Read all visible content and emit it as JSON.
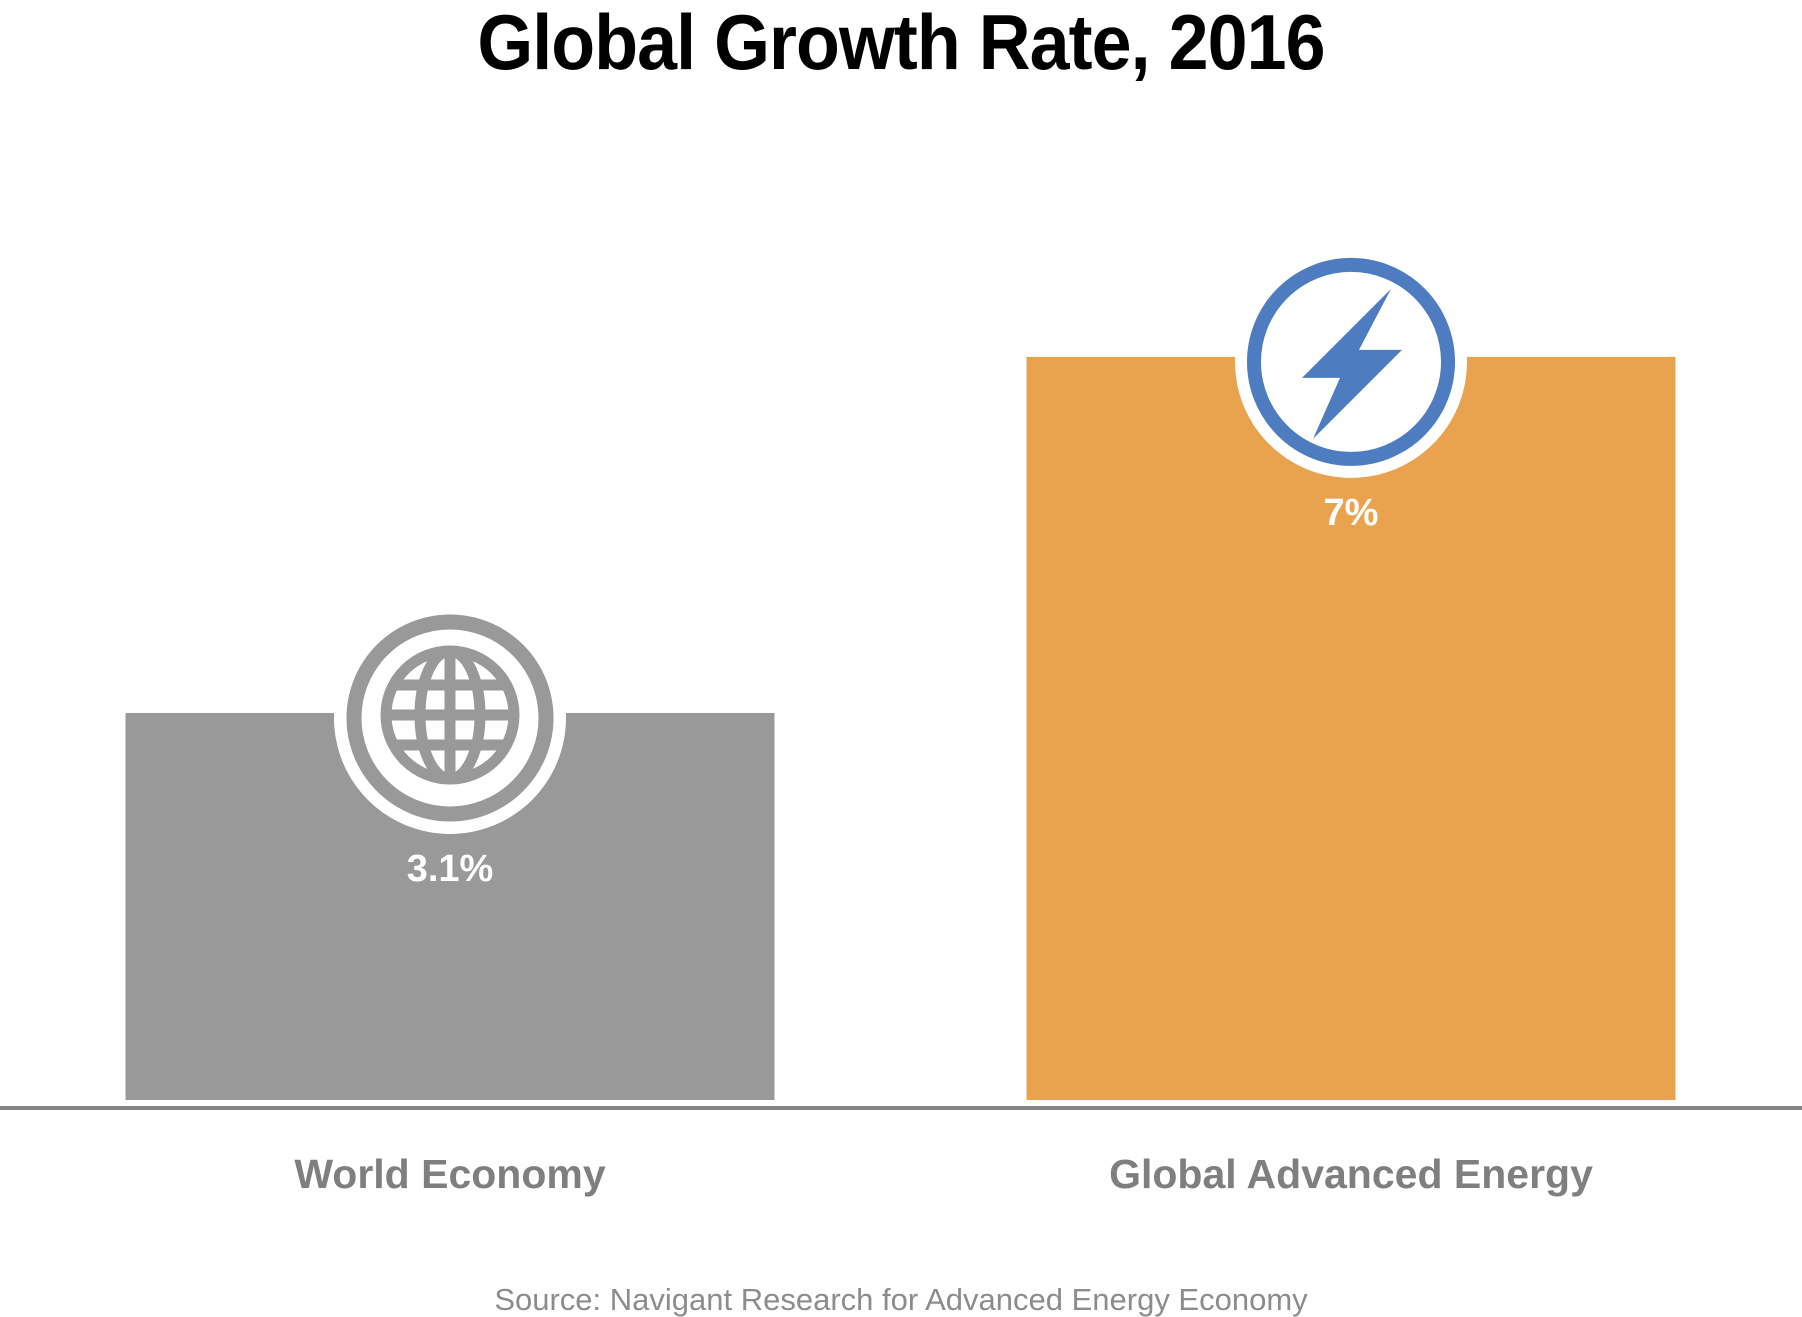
{
  "chart_data": {
    "type": "bar",
    "title": "Global Growth Rate, 2016",
    "xlabel": "",
    "ylabel": "",
    "categories": [
      "World Economy",
      "Global Advanced Energy"
    ],
    "values": [
      3.1,
      7
    ],
    "data_labels": [
      "3.1%",
      "7%"
    ],
    "unit": "%",
    "bar_colors": [
      "#999999",
      "#e9a24e"
    ],
    "bar_icons": [
      "globe-icon",
      "lightning-bolt-icon"
    ],
    "icon_colors": [
      "#999999",
      "#4d7cc1"
    ],
    "grid": false,
    "legend": "none",
    "axis_color": "#858585",
    "source": "Source: Navigant Research for Advanced Energy Economy"
  }
}
